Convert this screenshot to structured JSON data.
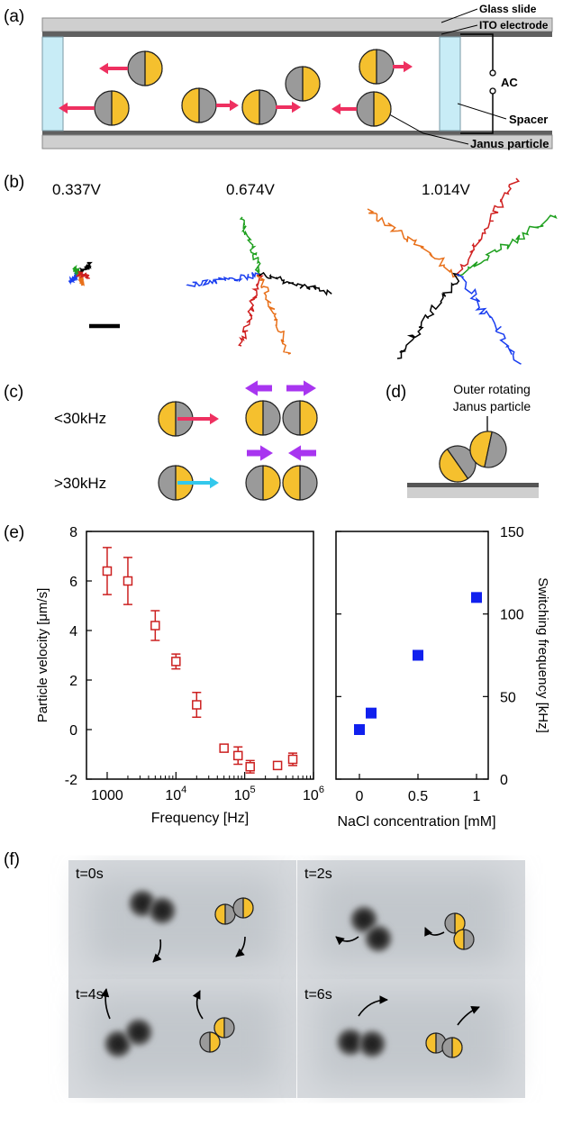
{
  "panel_labels": {
    "a": "(a)",
    "b": "(b)",
    "c": "(c)",
    "d": "(d)",
    "e": "(e)",
    "f": "(f)"
  },
  "panel_a": {
    "glass_slide": "Glass slide",
    "ito_electrode": "ITO electrode",
    "ac": "AC",
    "spacer": "Spacer",
    "janus_particle": "Janus particle"
  },
  "panel_b": {
    "voltages": [
      "0.337V",
      "0.674V",
      "1.014V"
    ]
  },
  "panel_c": {
    "low": "<30kHz",
    "high": ">30kHz"
  },
  "panel_d": {
    "line1": "Outer rotating",
    "line2": "Janus particle"
  },
  "panel_f": {
    "times": [
      "t=0s",
      "t=2s",
      "t=4s",
      "t=6s"
    ]
  },
  "colors": {
    "janus_yellow": "#f5c02e",
    "janus_gray": "#9a9a9a",
    "arrow_red": "#ee3060",
    "arrow_purple": "#a835f0",
    "arrow_cyan": "#33c8ec",
    "spacer_blue": "#c8ecf6",
    "series_red": "#cc2020",
    "series_blue": "#1020ee"
  },
  "chart_data": [
    {
      "type": "scatter",
      "xlabel": "Frequency [Hz]",
      "ylabel": "Particle velocity [μm/s]",
      "x_scale": "log",
      "xlim": [
        500,
        1000000
      ],
      "ylim": [
        -2,
        8
      ],
      "xticks": [
        1000,
        10000,
        100000,
        1000000
      ],
      "xtick_labels": [
        "1000",
        "10",
        "10",
        "10"
      ],
      "xtick_exponents": [
        "",
        "4",
        "5",
        "6"
      ],
      "yticks": [
        -2,
        0,
        2,
        4,
        6,
        8
      ],
      "ytick_labels": [
        "-2",
        "0",
        "2",
        "4",
        "6",
        "8"
      ],
      "marker": "open square with error bars",
      "points": [
        {
          "x": 1000,
          "y": 6.4,
          "err": 0.95
        },
        {
          "x": 2000,
          "y": 6.0,
          "err": 0.95
        },
        {
          "x": 5000,
          "y": 4.2,
          "err": 0.6
        },
        {
          "x": 10000,
          "y": 2.75,
          "err": 0.3
        },
        {
          "x": 20000,
          "y": 1.0,
          "err": 0.5
        },
        {
          "x": 50000,
          "y": -0.75,
          "err": 0.15
        },
        {
          "x": 80000,
          "y": -1.05,
          "err": 0.35
        },
        {
          "x": 120000,
          "y": -1.5,
          "err": 0.25
        },
        {
          "x": 300000,
          "y": -1.45,
          "err": 0.1
        },
        {
          "x": 500000,
          "y": -1.2,
          "err": 0.25
        }
      ]
    },
    {
      "type": "scatter",
      "xlabel": "NaCl concentration [mM]",
      "ylabel": "Switching frequency [kHz]",
      "xlim": [
        -0.2,
        1.1
      ],
      "ylim": [
        0,
        150
      ],
      "xticks": [
        0,
        0.5,
        1
      ],
      "xtick_labels": [
        "0",
        "0.5",
        "1"
      ],
      "yticks": [
        0,
        50,
        100,
        150
      ],
      "ytick_labels": [
        "0",
        "50",
        "100",
        "150"
      ],
      "marker": "filled square",
      "points": [
        {
          "x": 0,
          "y": 30
        },
        {
          "x": 0.1,
          "y": 40
        },
        {
          "x": 0.5,
          "y": 75
        },
        {
          "x": 1,
          "y": 110
        }
      ]
    }
  ]
}
